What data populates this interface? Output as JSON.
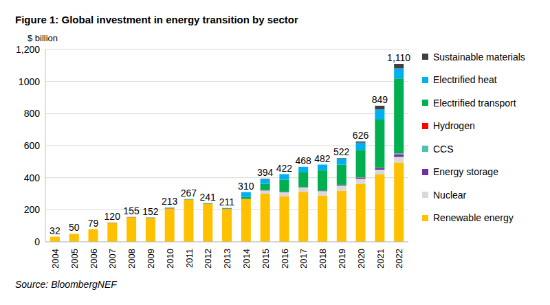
{
  "chart_data": {
    "type": "bar",
    "title": "Figure 1: Global investment in energy transition by sector",
    "ylabel": "$ billion",
    "source": "Source: BloombergNEF",
    "categories": [
      "2004",
      "2005",
      "2006",
      "2007",
      "2008",
      "2009",
      "2010",
      "2011",
      "2012",
      "2013",
      "2014",
      "2015",
      "2016",
      "2017",
      "2018",
      "2019",
      "2020",
      "2021",
      "2022"
    ],
    "series": [
      {
        "name": "Renewable energy",
        "color": "#ffc000",
        "values": [
          32,
          50,
          79,
          118,
          153,
          149,
          208,
          263,
          236,
          205,
          266,
          300,
          285,
          312,
          288,
          318,
          360,
          420,
          495
        ]
      },
      {
        "name": "Nuclear",
        "color": "#d9d9d9",
        "values": [
          0,
          0,
          0,
          0,
          0,
          0,
          0,
          0,
          0,
          0,
          0,
          20,
          25,
          28,
          28,
          32,
          33,
          30,
          35
        ]
      },
      {
        "name": "Energy storage",
        "color": "#7030a0",
        "values": [
          0,
          0,
          0,
          2,
          2,
          2,
          2,
          1,
          2,
          3,
          2,
          2,
          3,
          3,
          4,
          5,
          6,
          10,
          16
        ]
      },
      {
        "name": "CCS",
        "color": "#4fc1b0",
        "values": [
          0,
          0,
          0,
          0,
          0,
          0,
          0,
          0,
          0,
          0,
          0,
          0,
          0,
          0,
          0,
          1,
          3,
          2,
          6
        ]
      },
      {
        "name": "Hydrogen",
        "color": "#ff0000",
        "values": [
          0,
          0,
          0,
          0,
          0,
          0,
          0,
          0,
          0,
          0,
          0,
          0,
          0,
          0,
          0,
          0,
          1,
          1,
          1
        ]
      },
      {
        "name": "Electrified transport",
        "color": "#00b050",
        "values": [
          0,
          0,
          0,
          0,
          0,
          1,
          3,
          3,
          3,
          3,
          12,
          40,
          75,
          90,
          125,
          125,
          170,
          300,
          466
        ]
      },
      {
        "name": "Electrified heat",
        "color": "#00b0f0",
        "values": [
          0,
          0,
          0,
          0,
          0,
          0,
          0,
          0,
          0,
          0,
          30,
          30,
          34,
          35,
          37,
          38,
          45,
          63,
          63
        ]
      },
      {
        "name": "Sustainable materials",
        "color": "#404040",
        "values": [
          0,
          0,
          0,
          0,
          0,
          0,
          0,
          0,
          0,
          0,
          0,
          2,
          0,
          0,
          0,
          3,
          8,
          23,
          28
        ]
      }
    ],
    "totals": [
      32,
      50,
      79,
      120,
      155,
      152,
      213,
      267,
      241,
      211,
      310,
      394,
      422,
      468,
      482,
      522,
      626,
      849,
      1110
    ],
    "total_labels": [
      "32",
      "50",
      "79",
      "120",
      "155",
      "152",
      "213",
      "267",
      "241",
      "211",
      "310",
      "394",
      "422",
      "468",
      "482",
      "522",
      "626",
      "849",
      "1,110"
    ],
    "ylim": [
      0,
      1200
    ],
    "yticks": [
      0,
      200,
      400,
      600,
      800,
      1000,
      {
        "value": 1200,
        "label": "1,200"
      }
    ],
    "grid": true,
    "stacked": true,
    "legend": "right"
  }
}
